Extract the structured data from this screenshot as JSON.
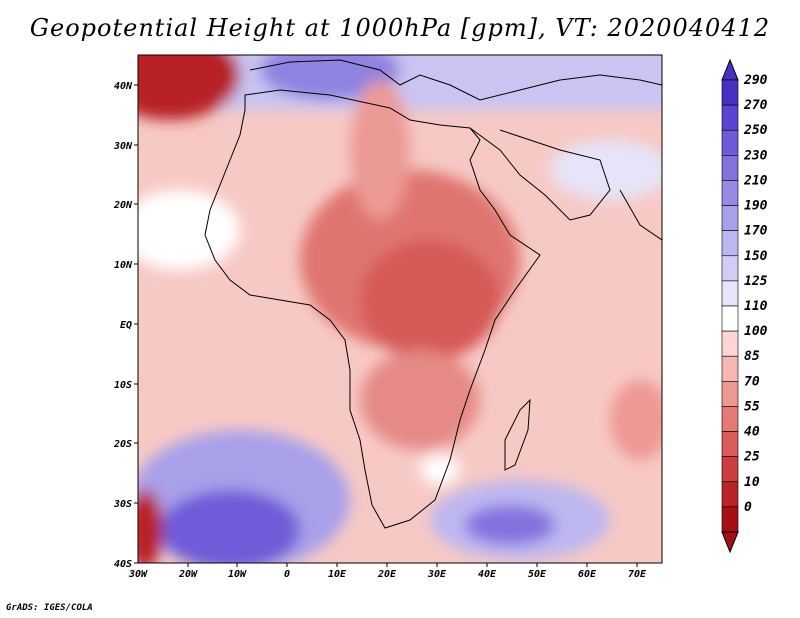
{
  "title": "Geopotential Height at 1000hPa [gpm], VT: 2020040412",
  "credit": "GrADS: IGES/COLA",
  "map": {
    "lat_labels": [
      "40N",
      "30N",
      "20N",
      "10N",
      "EQ",
      "10S",
      "20S",
      "30S",
      "40S"
    ],
    "lon_labels": [
      "30W",
      "20W",
      "10W",
      "0",
      "10E",
      "20E",
      "30E",
      "40E",
      "50E",
      "60E",
      "70E"
    ]
  },
  "colorbar": {
    "levels": [
      "290",
      "270",
      "250",
      "230",
      "210",
      "190",
      "170",
      "150",
      "125",
      "110",
      "100",
      "85",
      "70",
      "55",
      "40",
      "25",
      "10",
      "0"
    ],
    "colors": [
      "#4a2fc4",
      "#5b44cf",
      "#6e5bd8",
      "#8372de",
      "#968ae4",
      "#a9a0ea",
      "#bdb7f0",
      "#d1cdf5",
      "#e6e4fa",
      "#ffffff",
      "#fbd6d4",
      "#f5b7b3",
      "#ee9894",
      "#e47a76",
      "#d95c59",
      "#cc3f3e",
      "#b82426",
      "#a50f15"
    ]
  },
  "chart_data": {
    "type": "heatmap",
    "title": "Geopotential Height at 1000hPa [gpm], VT: 2020040412",
    "variable": "Geopotential Height at 1000hPa",
    "units": "gpm",
    "valid_time": "2020040412",
    "xlim": [
      -30,
      76
    ],
    "ylim": [
      -40,
      45
    ],
    "contour_levels": [
      0,
      10,
      25,
      40,
      55,
      70,
      85,
      100,
      110,
      125,
      150,
      170,
      190,
      210,
      230,
      250,
      270,
      290
    ]
  }
}
